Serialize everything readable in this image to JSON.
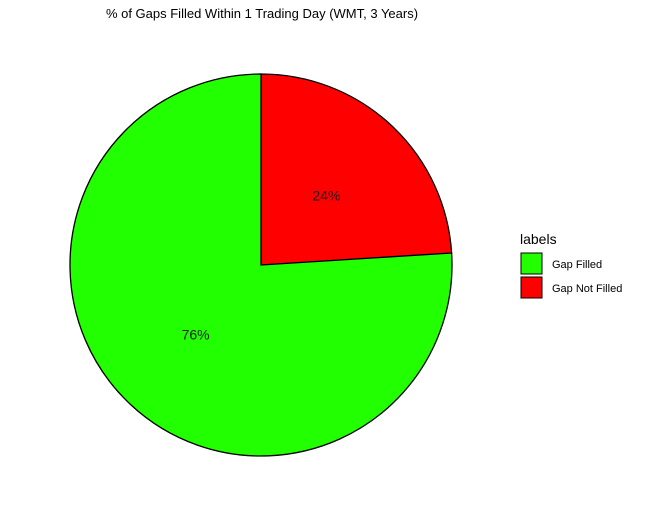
{
  "chart_data": {
    "type": "pie",
    "title": "% of Gaps Filled Within 1 Trading Day (WMT, 3 Years)",
    "categories": [
      "Gap Filled",
      "Gap Not Filled"
    ],
    "values": [
      76,
      24
    ],
    "slice_labels": [
      "76%",
      "24%"
    ],
    "colors": [
      "#22ff00",
      "#ff0000"
    ],
    "legend": {
      "title": "labels",
      "placement": "right"
    }
  }
}
